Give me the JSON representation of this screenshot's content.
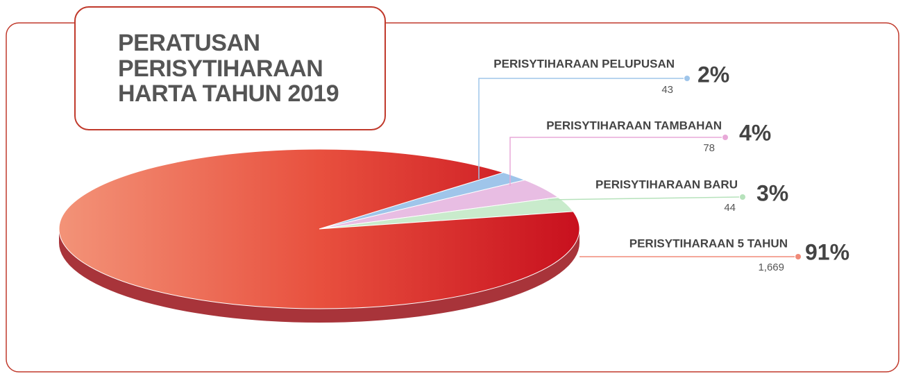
{
  "chart_data": {
    "type": "pie",
    "title": "PERATUSAN PERISYTIHARAAN HARTA TAHUN 2019",
    "categories": [
      "PERISYTIHARAAN PELUPUSAN",
      "PERISYTIHARAAN TAMBAHAN",
      "PERISYTIHARAAN BARU",
      "PERISYTIHARAAN 5 TAHUN"
    ],
    "values": [
      2,
      4,
      3,
      91
    ],
    "value_labels": [
      "2%",
      "4%",
      "3%",
      "91%"
    ],
    "counts": [
      43,
      78,
      44,
      1669
    ],
    "count_labels": [
      "43",
      "78",
      "44",
      "1,669"
    ],
    "colors": [
      "#9fc5ea",
      "#e8bde3",
      "#c9ebcc",
      "url(#redgrad)"
    ],
    "line_colors": [
      "#9fc5ea",
      "#e8a9d8",
      "#b6e2bb",
      "#f08a78"
    ]
  }
}
